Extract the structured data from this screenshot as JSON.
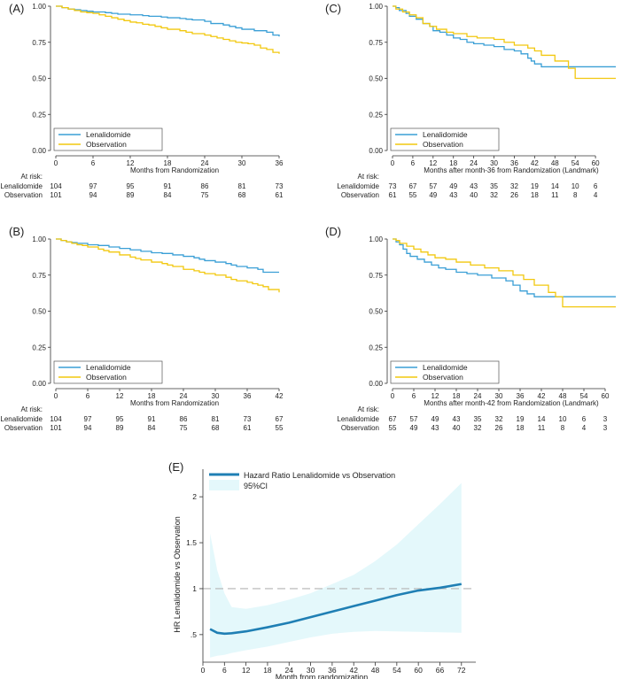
{
  "chart_data": [
    {
      "panel": "(A)",
      "type": "line",
      "xlabel": "Months from Randomization",
      "ylabel": "",
      "xlim": [
        0,
        36
      ],
      "ylim": [
        0,
        1
      ],
      "xticks": [
        "0",
        "6",
        "12",
        "18",
        "24",
        "30",
        "36"
      ],
      "xtickvals": [
        0,
        6,
        12,
        18,
        24,
        30,
        36
      ],
      "yticks": [
        "0.00",
        "0.25",
        "0.50",
        "0.75",
        "1.00"
      ],
      "ytickvals": [
        0,
        0.25,
        0.5,
        0.75,
        1
      ],
      "legend": [
        "Lenalidomide",
        "Observation"
      ],
      "series": [
        {
          "name": "Lenalidomide",
          "color": "#3a9fd6",
          "x": [
            0,
            1,
            2,
            3,
            4,
            5,
            6,
            8,
            9,
            10,
            12,
            14,
            15,
            17,
            18,
            20,
            21,
            22,
            24,
            25,
            27,
            28,
            29,
            30,
            32,
            34,
            35,
            36
          ],
          "y": [
            1,
            0.99,
            0.98,
            0.975,
            0.97,
            0.965,
            0.96,
            0.955,
            0.95,
            0.945,
            0.94,
            0.935,
            0.93,
            0.925,
            0.92,
            0.915,
            0.91,
            0.905,
            0.895,
            0.88,
            0.87,
            0.86,
            0.85,
            0.84,
            0.83,
            0.82,
            0.8,
            0.79
          ]
        },
        {
          "name": "Observation",
          "color": "#f2c80f",
          "x": [
            0,
            1,
            2,
            3,
            4,
            5,
            6,
            7,
            8,
            9,
            10,
            11,
            12,
            13,
            14,
            15,
            16,
            17,
            18,
            20,
            21,
            22,
            24,
            25,
            26,
            27,
            28,
            29,
            30,
            31,
            32,
            33,
            34,
            35,
            36
          ],
          "y": [
            1,
            0.99,
            0.98,
            0.97,
            0.96,
            0.955,
            0.95,
            0.94,
            0.93,
            0.92,
            0.91,
            0.9,
            0.89,
            0.885,
            0.875,
            0.87,
            0.86,
            0.85,
            0.84,
            0.83,
            0.82,
            0.81,
            0.8,
            0.79,
            0.78,
            0.77,
            0.76,
            0.75,
            0.745,
            0.74,
            0.73,
            0.71,
            0.7,
            0.68,
            0.67
          ]
        }
      ],
      "at_risk": {
        "label": "At risk:",
        "rows": [
          {
            "name": "Lenalidomide",
            "values": [
              "104",
              "97",
              "95",
              "91",
              "86",
              "81",
              "73"
            ]
          },
          {
            "name": "Observation",
            "values": [
              "101",
              "94",
              "89",
              "84",
              "75",
              "68",
              "61"
            ]
          }
        ]
      }
    },
    {
      "panel": "(B)",
      "type": "line",
      "xlabel": "Months from Randomization",
      "ylabel": "",
      "xlim": [
        0,
        42
      ],
      "ylim": [
        0,
        1
      ],
      "xticks": [
        "0",
        "6",
        "12",
        "18",
        "24",
        "30",
        "36",
        "42"
      ],
      "xtickvals": [
        0,
        6,
        12,
        18,
        24,
        30,
        36,
        42
      ],
      "yticks": [
        "0.00",
        "0.25",
        "0.50",
        "0.75",
        "1.00"
      ],
      "ytickvals": [
        0,
        0.25,
        0.5,
        0.75,
        1
      ],
      "legend": [
        "Lenalidomide",
        "Observation"
      ],
      "series": [
        {
          "name": "Lenalidomide",
          "color": "#3a9fd6",
          "x": [
            0,
            1,
            2,
            3,
            4,
            6,
            8,
            10,
            12,
            14,
            16,
            18,
            20,
            22,
            24,
            26,
            27,
            28,
            30,
            32,
            33,
            34,
            36,
            38,
            39,
            42
          ],
          "y": [
            1,
            0.99,
            0.98,
            0.975,
            0.97,
            0.96,
            0.955,
            0.945,
            0.935,
            0.925,
            0.915,
            0.905,
            0.9,
            0.89,
            0.88,
            0.87,
            0.86,
            0.85,
            0.84,
            0.83,
            0.82,
            0.81,
            0.8,
            0.79,
            0.77,
            0.77
          ]
        },
        {
          "name": "Observation",
          "color": "#f2c80f",
          "x": [
            0,
            1,
            2,
            3,
            4,
            5,
            6,
            8,
            9,
            10,
            12,
            14,
            15,
            16,
            18,
            20,
            21,
            22,
            24,
            26,
            27,
            28,
            30,
            32,
            33,
            34,
            36,
            37,
            38,
            39,
            40,
            42
          ],
          "y": [
            1,
            0.99,
            0.98,
            0.97,
            0.96,
            0.955,
            0.945,
            0.93,
            0.92,
            0.91,
            0.89,
            0.875,
            0.865,
            0.855,
            0.84,
            0.83,
            0.82,
            0.81,
            0.79,
            0.78,
            0.77,
            0.76,
            0.75,
            0.735,
            0.72,
            0.71,
            0.7,
            0.69,
            0.68,
            0.67,
            0.65,
            0.63
          ]
        }
      ],
      "at_risk": {
        "label": "At risk:",
        "rows": [
          {
            "name": "Lenalidomide",
            "values": [
              "104",
              "97",
              "95",
              "91",
              "86",
              "81",
              "73",
              "67"
            ]
          },
          {
            "name": "Observation",
            "values": [
              "101",
              "94",
              "89",
              "84",
              "75",
              "68",
              "61",
              "55"
            ]
          }
        ]
      }
    },
    {
      "panel": "(C)",
      "type": "line",
      "xlabel": "Months after month-36 from Randomization (Landmark)",
      "ylabel": "",
      "xlim": [
        0,
        66
      ],
      "ylim": [
        0,
        1
      ],
      "xticks": [
        "0",
        "6",
        "12",
        "18",
        "24",
        "30",
        "36",
        "42",
        "48",
        "54",
        "60"
      ],
      "xtickvals": [
        0,
        6,
        12,
        18,
        24,
        30,
        36,
        42,
        48,
        54,
        60
      ],
      "yticks": [
        "0.00",
        "0.25",
        "0.50",
        "0.75",
        "1.00"
      ],
      "ytickvals": [
        0,
        0.25,
        0.5,
        0.75,
        1
      ],
      "legend": [
        "Lenalidomide",
        "Observation"
      ],
      "series": [
        {
          "name": "Lenalidomide",
          "color": "#3a9fd6",
          "x": [
            0,
            1,
            2,
            4,
            5,
            7,
            9,
            11,
            12,
            14,
            16,
            18,
            20,
            22,
            24,
            27,
            30,
            33,
            36,
            38,
            40,
            41,
            42,
            44,
            46,
            54,
            66
          ],
          "y": [
            1,
            0.99,
            0.97,
            0.95,
            0.93,
            0.91,
            0.88,
            0.86,
            0.83,
            0.82,
            0.8,
            0.78,
            0.77,
            0.75,
            0.74,
            0.73,
            0.72,
            0.7,
            0.69,
            0.67,
            0.64,
            0.62,
            0.6,
            0.58,
            0.58,
            0.58,
            0.58
          ]
        },
        {
          "name": "Observation",
          "color": "#f2c80f",
          "x": [
            0,
            1,
            3,
            5,
            7,
            9,
            11,
            13,
            16,
            18,
            22,
            25,
            30,
            33,
            36,
            40,
            42,
            44,
            48,
            52,
            54,
            66
          ],
          "y": [
            1,
            0.98,
            0.96,
            0.94,
            0.92,
            0.88,
            0.86,
            0.84,
            0.82,
            0.81,
            0.79,
            0.78,
            0.77,
            0.75,
            0.73,
            0.71,
            0.69,
            0.66,
            0.62,
            0.57,
            0.5,
            0.5
          ]
        }
      ],
      "at_risk": {
        "label": "At risk:",
        "rows": [
          {
            "name": "Lenalidomide",
            "values": [
              "73",
              "67",
              "57",
              "49",
              "43",
              "35",
              "32",
              "19",
              "14",
              "10",
              "6"
            ]
          },
          {
            "name": "Observation",
            "values": [
              "61",
              "55",
              "49",
              "43",
              "40",
              "32",
              "26",
              "18",
              "11",
              "8",
              "4"
            ]
          }
        ]
      }
    },
    {
      "panel": "(D)",
      "type": "line",
      "xlabel": "Months after month-42 from Randomization (Landmark)",
      "ylabel": "",
      "xlim": [
        0,
        63
      ],
      "ylim": [
        0,
        1
      ],
      "xticks": [
        "0",
        "6",
        "12",
        "18",
        "24",
        "30",
        "36",
        "42",
        "48",
        "54",
        "60"
      ],
      "xtickvals": [
        0,
        6,
        12,
        18,
        24,
        30,
        36,
        42,
        48,
        54,
        60
      ],
      "yticks": [
        "0.00",
        "0.25",
        "0.50",
        "0.75",
        "1.00"
      ],
      "ytickvals": [
        0,
        0.25,
        0.5,
        0.75,
        1
      ],
      "legend": [
        "Lenalidomide",
        "Observation"
      ],
      "series": [
        {
          "name": "Lenalidomide",
          "color": "#3a9fd6",
          "x": [
            0,
            1,
            2,
            3,
            4,
            5,
            7,
            9,
            11,
            13,
            15,
            18,
            21,
            24,
            28,
            32,
            34,
            36,
            38,
            40,
            45,
            63
          ],
          "y": [
            1,
            0.98,
            0.96,
            0.93,
            0.9,
            0.88,
            0.86,
            0.84,
            0.82,
            0.8,
            0.79,
            0.77,
            0.76,
            0.75,
            0.73,
            0.71,
            0.68,
            0.64,
            0.62,
            0.6,
            0.6,
            0.6
          ]
        },
        {
          "name": "Observation",
          "color": "#f2c80f",
          "x": [
            0,
            1,
            2,
            4,
            6,
            8,
            10,
            12,
            15,
            18,
            22,
            26,
            30,
            34,
            37,
            40,
            44,
            46,
            48,
            63
          ],
          "y": [
            1,
            0.99,
            0.97,
            0.95,
            0.93,
            0.91,
            0.89,
            0.87,
            0.86,
            0.84,
            0.82,
            0.8,
            0.78,
            0.75,
            0.72,
            0.68,
            0.63,
            0.6,
            0.53,
            0.53
          ]
        }
      ],
      "at_risk": {
        "label": "At risk:",
        "rows": [
          {
            "name": "Lenalidomide",
            "values": [
              "67",
              "57",
              "49",
              "43",
              "35",
              "32",
              "19",
              "14",
              "10",
              "6",
              "3"
            ]
          },
          {
            "name": "Observation",
            "values": [
              "55",
              "49",
              "43",
              "40",
              "32",
              "26",
              "18",
              "11",
              "8",
              "4",
              "3"
            ]
          }
        ]
      }
    },
    {
      "panel": "(E)",
      "type": "area",
      "xlabel": "Month from randomization",
      "ylabel": "HR Lenalidomide vs Observation",
      "xlim": [
        0,
        76
      ],
      "ylim": [
        0.2,
        2.3
      ],
      "xticks": [
        "0",
        "6",
        "12",
        "18",
        "24",
        "30",
        "36",
        "42",
        "48",
        "54",
        "60",
        "66",
        "72"
      ],
      "xtickvals": [
        0,
        6,
        12,
        18,
        24,
        30,
        36,
        42,
        48,
        54,
        60,
        66,
        72
      ],
      "yticks": [
        ".5",
        "1",
        "1.5",
        "2"
      ],
      "ytickvals": [
        0.5,
        1,
        1.5,
        2
      ],
      "reference_line": 1,
      "legend": [
        "Hazard Ratio Lenalidomide vs Observation",
        "95%CI"
      ],
      "series": [
        {
          "name": "Hazard Ratio Lenalidomide vs Observation",
          "color": "#1f7fb4",
          "x": [
            2,
            4,
            6,
            8,
            12,
            18,
            24,
            30,
            36,
            42,
            48,
            54,
            60,
            66,
            72
          ],
          "y": [
            0.56,
            0.52,
            0.51,
            0.515,
            0.535,
            0.58,
            0.63,
            0.69,
            0.75,
            0.81,
            0.87,
            0.93,
            0.98,
            1.01,
            1.05
          ]
        },
        {
          "name": "95%CI",
          "color": "#e4f8fb",
          "x": [
            2,
            4,
            6,
            8,
            12,
            18,
            24,
            30,
            36,
            42,
            48,
            54,
            60,
            66,
            72
          ],
          "lower": [
            0.25,
            0.27,
            0.28,
            0.3,
            0.33,
            0.37,
            0.42,
            0.47,
            0.51,
            0.53,
            0.54,
            0.535,
            0.53,
            0.525,
            0.52
          ],
          "upper": [
            1.6,
            1.2,
            0.95,
            0.8,
            0.78,
            0.82,
            0.88,
            0.95,
            1.05,
            1.15,
            1.3,
            1.48,
            1.7,
            1.92,
            2.15
          ]
        }
      ]
    }
  ]
}
